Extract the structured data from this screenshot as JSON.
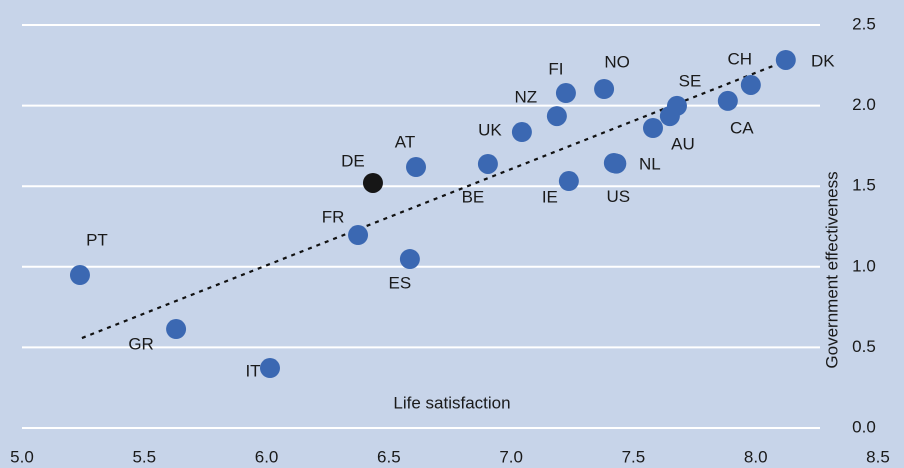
{
  "chart_data": {
    "type": "scatter",
    "xlabel": "Life satisfaction",
    "ylabel": "Government effectiveness",
    "xlim": [
      5.0,
      8.5
    ],
    "ylim": [
      0.0,
      2.5
    ],
    "xticks": [
      {
        "value": 5.0,
        "label": "5.0"
      },
      {
        "value": 5.5,
        "label": "5.5"
      },
      {
        "value": 6.0,
        "label": "6.0"
      },
      {
        "value": 6.5,
        "label": "6.5"
      },
      {
        "value": 7.0,
        "label": "7.0"
      },
      {
        "value": 7.5,
        "label": "7.5"
      },
      {
        "value": 8.0,
        "label": "8.0"
      },
      {
        "value": 8.5,
        "label": "8.5"
      }
    ],
    "yticks": [
      {
        "value": 0.0,
        "label": "0.0"
      },
      {
        "value": 0.5,
        "label": "0.5"
      },
      {
        "value": 1.0,
        "label": "1.0"
      },
      {
        "value": 1.5,
        "label": "1.5"
      },
      {
        "value": 2.0,
        "label": "2.0"
      },
      {
        "value": 2.5,
        "label": "2.5"
      }
    ],
    "grid": true,
    "series": [
      {
        "color": "#3b68b2",
        "labels": [
          "PT",
          "GR",
          "IT",
          "FR",
          "ES",
          "AT",
          "BE",
          "UK",
          "NZ",
          "FI",
          "IE",
          "NO",
          "NL",
          "US",
          "AU",
          null,
          "SE",
          "CA",
          "CH",
          "DK"
        ],
        "x": [
          5.237,
          5.63,
          6.014,
          6.374,
          6.586,
          6.611,
          6.905,
          7.044,
          7.187,
          7.224,
          7.236,
          7.38,
          7.42,
          7.43,
          7.58,
          7.649,
          7.678,
          7.886,
          7.98,
          8.123
        ],
        "y": [
          0.949,
          0.614,
          0.372,
          1.197,
          1.048,
          1.619,
          1.638,
          1.836,
          1.935,
          2.078,
          1.532,
          2.103,
          1.644,
          1.64,
          1.861,
          1.935,
          1.998,
          2.029,
          2.128,
          2.283
        ]
      },
      {
        "color": "#161616",
        "labels": [
          "DE"
        ],
        "x": [
          6.435
        ],
        "y": [
          1.52
        ]
      }
    ],
    "trendline": {
      "x": [
        5.245,
        8.111
      ],
      "y": [
        0.558,
        2.27
      ],
      "color": "#111111"
    }
  }
}
